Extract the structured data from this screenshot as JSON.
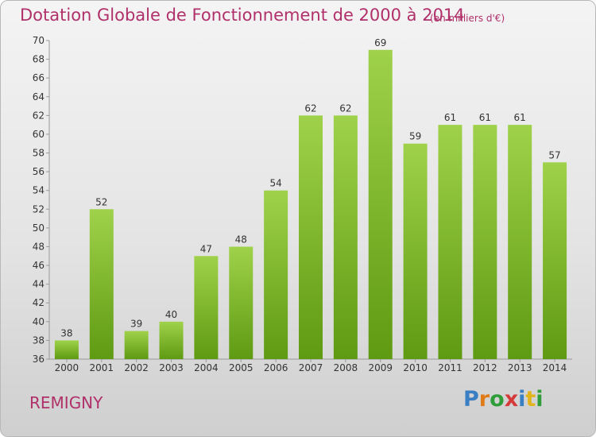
{
  "header": {
    "title": "Dotation Globale de Fonctionnement de 2000 à 2014",
    "unit": "(en milliers d'€)"
  },
  "footer": {
    "commune": "REMIGNY",
    "logo_text": "Proxiti",
    "logo_colors": [
      "#3a7fc4",
      "#e07b1a",
      "#2f9e3a",
      "#d43a3a",
      "#3a7fc4",
      "#e0b41a",
      "#2f9e3a"
    ]
  },
  "chart_data": {
    "type": "bar",
    "title": "Dotation Globale de Fonctionnement de 2000 à 2014",
    "subtitle": "(en milliers d'€)",
    "categories": [
      "2000",
      "2001",
      "2002",
      "2003",
      "2004",
      "2005",
      "2006",
      "2007",
      "2008",
      "2009",
      "2010",
      "2011",
      "2012",
      "2013",
      "2014"
    ],
    "values": [
      38,
      52,
      39,
      40,
      47,
      48,
      54,
      62,
      62,
      69,
      59,
      61,
      61,
      61,
      57
    ],
    "ylim": [
      36,
      70
    ],
    "ytick_step": 2,
    "grid": false,
    "bar_color_top": "#9fd24a",
    "bar_color_bottom": "#5e9a12",
    "text_color": "#333333"
  }
}
